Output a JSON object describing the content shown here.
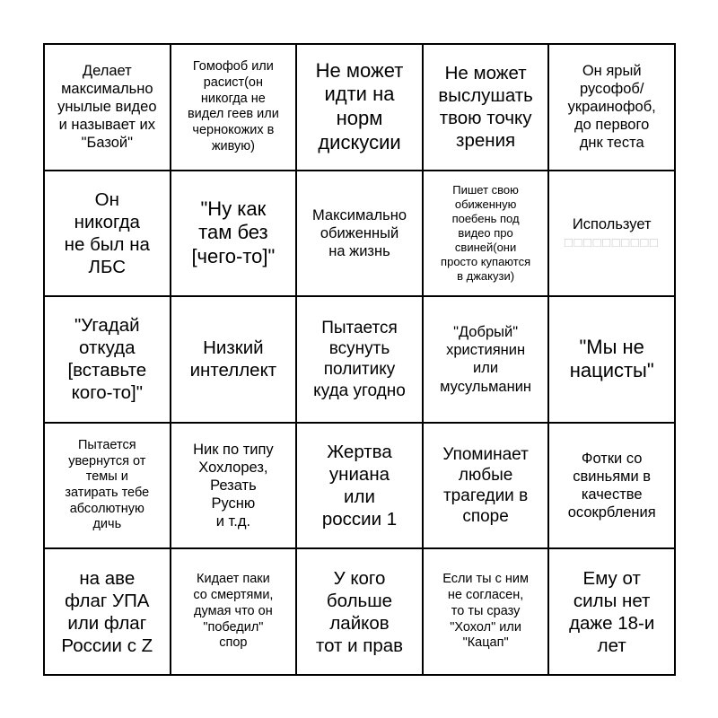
{
  "page": {
    "background_color": "#ffffff",
    "grid_border_color": "#000000",
    "text_color": "#000000",
    "missing_glyph_color": "#c9c9c9"
  },
  "bingo": {
    "grid_size": "5x5",
    "cells": [
      {
        "text": "Делает\nмаксимально\nунылые видео\nи называет их\n\"Базой\"",
        "size": "md"
      },
      {
        "text": "Гомофоб или\nрасист(он\nникогда не\nвидел геев или\nчернокожих в\nживую)",
        "size": "sm"
      },
      {
        "text": "Не может\nидти на\nнорм\nдискусии",
        "size": "xxl"
      },
      {
        "text": "Не может\nвыслушать\nтвою точку\nзрения",
        "size": "xl"
      },
      {
        "text": "Он ярый\nрусофоб/\nукраинофоб,\nдо первого\nднк теста",
        "size": "md"
      },
      {
        "text": "Он\nникогда\nне был на\nЛБС",
        "size": "xl"
      },
      {
        "text": "\"Ну как\nтам без\n[чего-то]\"",
        "size": "xxl"
      },
      {
        "text": "Максимально\nобиженный\nна жизнь",
        "size": "md"
      },
      {
        "text": "Пишет свою\nобиженную\nпоебень под\nвидео про\nсвиней(они\nпросто купаются\nв джакузи)",
        "size": "xs"
      },
      {
        "text": "Использует",
        "size": "md",
        "placeholder_boxes": "□□□□□□□□□□"
      },
      {
        "text": "\"Угадай\nоткуда\n[вставьте\nкого-то]\"",
        "size": "xl"
      },
      {
        "text": "Низкий\nинтеллект",
        "size": "xl"
      },
      {
        "text": "Пытается\nвсунуть\nполитику\nкуда угодно",
        "size": "lg"
      },
      {
        "text": "\"Добрый\"\nхристиянин\nили\nмусульманин",
        "size": "md"
      },
      {
        "text": "\"Мы не\nнацисты\"",
        "size": "xxl"
      },
      {
        "text": "Пытается\nувернутся от\nтемы и\nзатирать тебе\nабсолютную\nдичь",
        "size": "sm"
      },
      {
        "text": "Ник по типу\nХохлорез,\nРезать\nРусню\nи т.д.",
        "size": "md"
      },
      {
        "text": "Жертва\nуниана\nили\nроссии 1",
        "size": "xl"
      },
      {
        "text": "Упоминает\nлюбые\nтрагедии в\nспоре",
        "size": "lg"
      },
      {
        "text": "Фотки со\nсвиньями в\nкачестве\nосокрбления",
        "size": "md"
      },
      {
        "text": "на аве\nфлаг УПА\nили флаг\nРоссии с Z",
        "size": "xl"
      },
      {
        "text": "Кидает паки\nсо смертями,\nдумая что он\n\"победил\"\nспор",
        "size": "sm"
      },
      {
        "text": "У кого\nбольше\nлайков\nтот и прав",
        "size": "xl"
      },
      {
        "text": "Если ты с ним\nне согласен,\nто ты сразу\n\"Хохол\" или\n\"Кацап\"",
        "size": "sm"
      },
      {
        "text": "Ему от\nсилы нет\nдаже 18-и\nлет",
        "size": "xl"
      }
    ]
  }
}
